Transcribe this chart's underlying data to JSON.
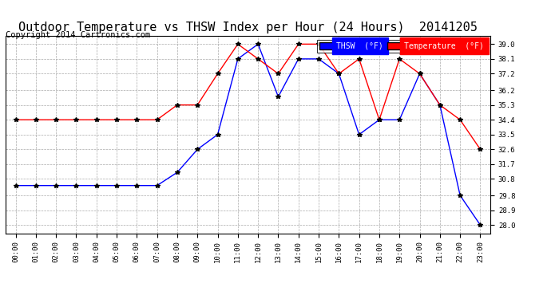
{
  "title": "Outdoor Temperature vs THSW Index per Hour (24 Hours)  20141205",
  "copyright": "Copyright 2014 Cartronics.com",
  "legend_thsw": "THSW  (°F)",
  "legend_temp": "Temperature  (°F)",
  "hours": [
    "00:00",
    "01:00",
    "02:00",
    "03:00",
    "04:00",
    "05:00",
    "06:00",
    "07:00",
    "08:00",
    "09:00",
    "10:00",
    "11:00",
    "12:00",
    "13:00",
    "14:00",
    "15:00",
    "16:00",
    "17:00",
    "18:00",
    "19:00",
    "20:00",
    "21:00",
    "22:00",
    "23:00"
  ],
  "thsw": [
    30.4,
    30.4,
    30.4,
    30.4,
    30.4,
    30.4,
    30.4,
    30.4,
    31.2,
    32.6,
    33.5,
    38.1,
    39.0,
    35.8,
    38.1,
    38.1,
    37.2,
    33.5,
    34.4,
    34.4,
    37.2,
    35.3,
    29.8,
    28.0
  ],
  "temperature": [
    34.4,
    34.4,
    34.4,
    34.4,
    34.4,
    34.4,
    34.4,
    34.4,
    35.3,
    35.3,
    37.2,
    39.0,
    38.1,
    37.2,
    39.0,
    39.0,
    37.2,
    38.1,
    34.4,
    38.1,
    37.2,
    35.3,
    34.4,
    32.6
  ],
  "ylim_min": 27.5,
  "ylim_max": 39.5,
  "yticks": [
    28.0,
    28.9,
    29.8,
    30.8,
    31.7,
    32.6,
    33.5,
    34.4,
    35.3,
    36.2,
    37.2,
    38.1,
    39.0
  ],
  "thsw_color": "#0000ff",
  "temp_color": "#ff0000",
  "background_color": "#ffffff",
  "grid_color": "#aaaaaa",
  "title_fontsize": 11,
  "copyright_fontsize": 7.5
}
